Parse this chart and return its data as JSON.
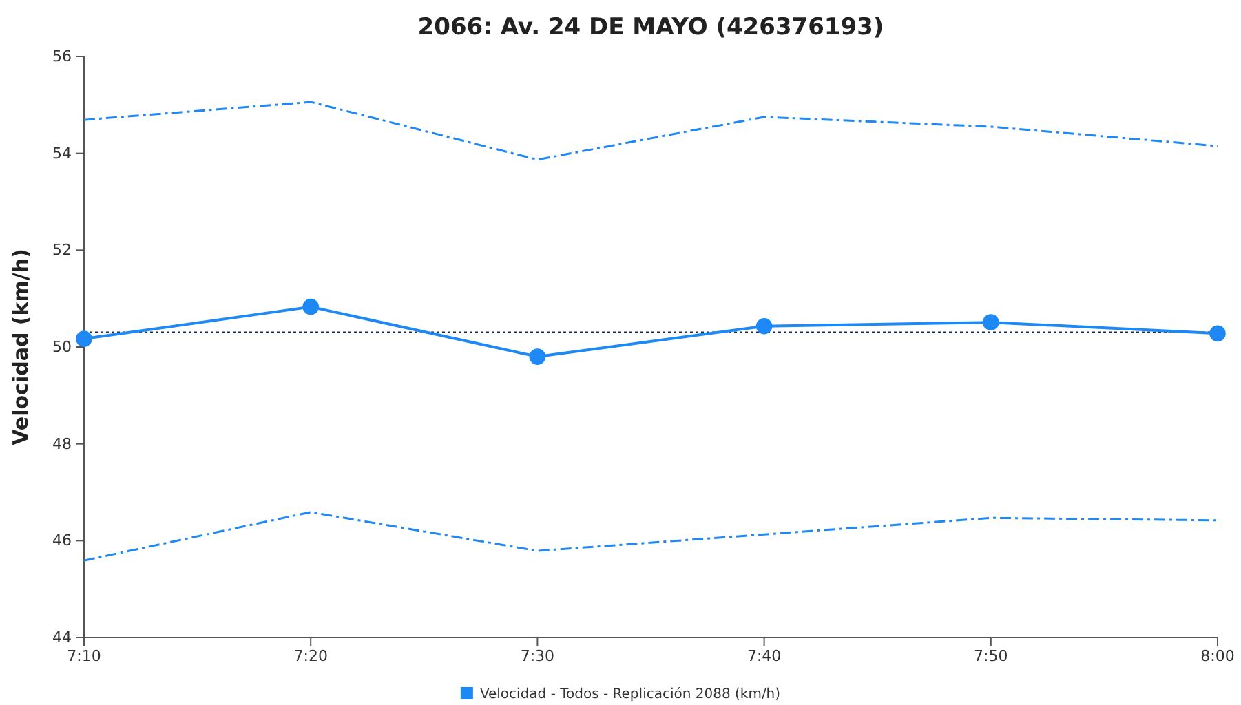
{
  "chart_data": {
    "type": "line",
    "title": "2066: Av. 24 DE MAYO (426376193)",
    "ylabel": "Velocidad (km/h)",
    "categories": [
      "7:10",
      "7:20",
      "7:30",
      "7:40",
      "7:50",
      "8:00"
    ],
    "ylim": [
      44,
      56
    ],
    "yticks": [
      44,
      46,
      48,
      50,
      52,
      54,
      56
    ],
    "grid": false,
    "legend": "bottom",
    "series": [
      {
        "name": "Velocidad - Todos - Replicación 2088 (km/h)",
        "color": "#1e88f5",
        "values": [
          50.17,
          50.83,
          49.8,
          50.43,
          50.51,
          50.28
        ],
        "marker": "circle",
        "line_style": "solid"
      },
      {
        "color": "#1e88f5",
        "values": [
          54.69,
          55.06,
          53.87,
          54.75,
          54.55,
          54.15
        ],
        "marker": "none",
        "line_style": "dashed"
      },
      {
        "color": "#1e88f5",
        "values": [
          45.59,
          46.59,
          45.79,
          46.13,
          46.47,
          46.42
        ],
        "marker": "none",
        "line_style": "dashed"
      }
    ],
    "ref_lines": [
      {
        "axis": "y",
        "value": 50.31,
        "color": "#1a2a5a",
        "line_style": "dotted"
      }
    ]
  }
}
